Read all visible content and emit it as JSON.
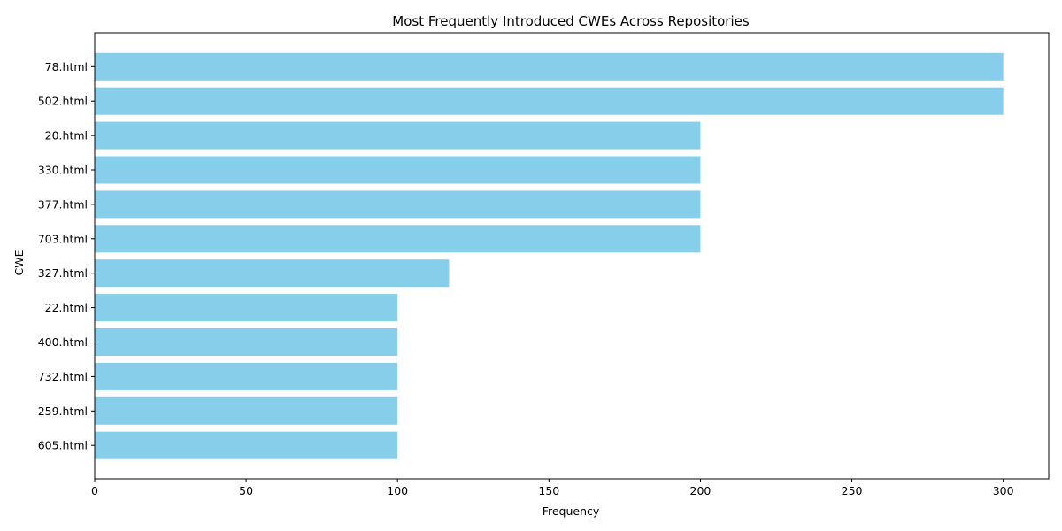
{
  "chart_data": {
    "type": "bar",
    "orientation": "horizontal",
    "title": "Most Frequently Introduced CWEs Across Repositories",
    "xlabel": "Frequency",
    "ylabel": "CWE",
    "categories": [
      "78.html",
      "502.html",
      "20.html",
      "330.html",
      "377.html",
      "703.html",
      "327.html",
      "22.html",
      "400.html",
      "732.html",
      "259.html",
      "605.html"
    ],
    "values": [
      300,
      300,
      200,
      200,
      200,
      200,
      117,
      100,
      100,
      100,
      100,
      100
    ],
    "xlim": [
      0,
      315
    ],
    "xticks": [
      0,
      50,
      100,
      150,
      200,
      250,
      300
    ],
    "bar_color": "#87ceeb",
    "grid": false,
    "legend": "none"
  }
}
